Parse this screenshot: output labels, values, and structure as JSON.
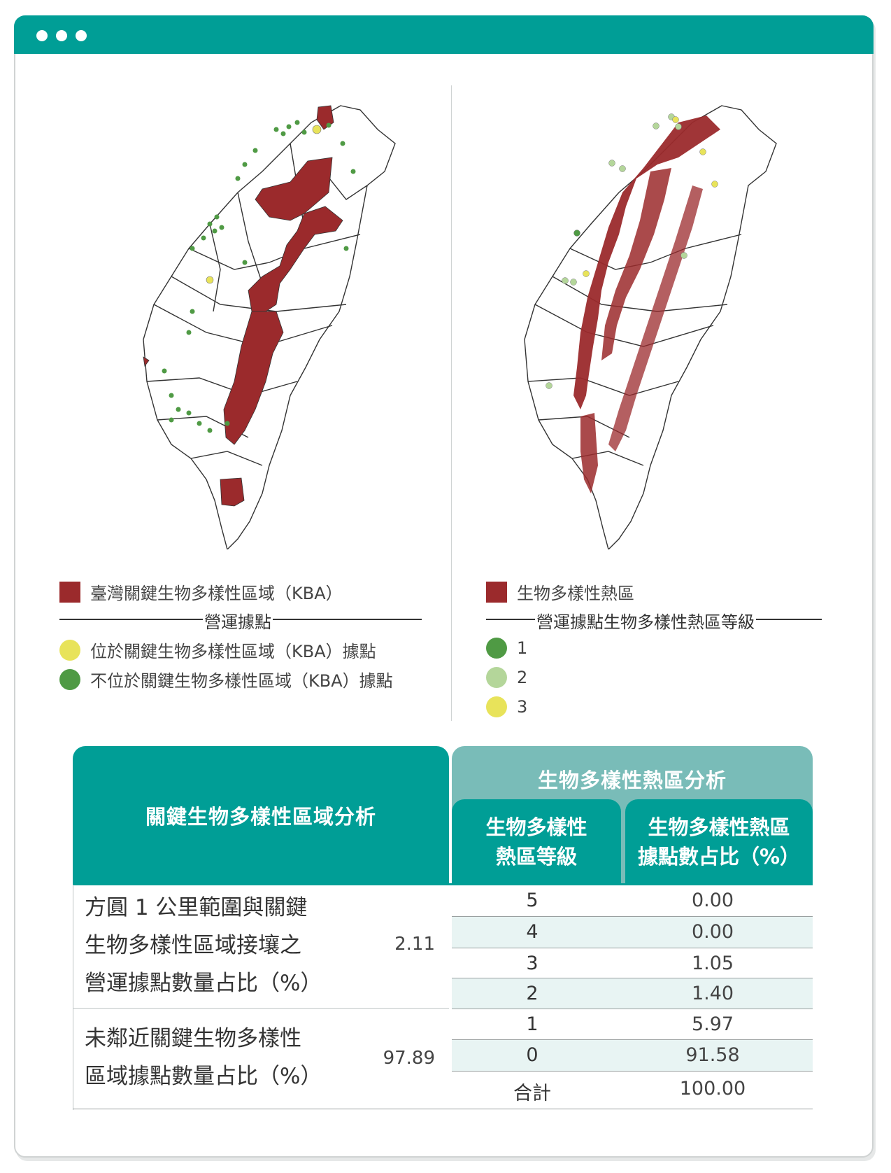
{
  "window": {
    "dots": 3
  },
  "left_map": {
    "legend_kba": "臺灣關鍵生物多樣性區域（KBA）",
    "legend_group_title": "營運據點",
    "legend_in_kba": "位於關鍵生物多樣性區域（KBA）據點",
    "legend_not_in_kba": "不位於關鍵生物多樣性區域（KBA）據點",
    "colors": {
      "kba": "#9b2a2c",
      "in_kba": "#e8e35a",
      "not_in_kba": "#4f9a44"
    }
  },
  "right_map": {
    "legend_hotspot": "生物多樣性熱區",
    "legend_group_title": "營運據點生物多樣性熱區等級",
    "levels": [
      {
        "label": "1",
        "color": "#4f9a44"
      },
      {
        "label": "2",
        "color": "#b4d69a"
      },
      {
        "label": "3",
        "color": "#e8e35a"
      }
    ]
  },
  "table": {
    "left_header": "關鍵生物多樣性區域分析",
    "right_header": "生物多樣性熱區分析",
    "sub_header_level": [
      "生物多樣性",
      "熱區等級"
    ],
    "sub_header_ratio": [
      "生物多樣性熱區",
      "據點數占比（%）"
    ],
    "left_rows": [
      {
        "lines": [
          "方圓 1 公里範圍與關鍵",
          "生物多樣性區域接壤之",
          "營運據點數量占比（%）"
        ],
        "value": "2.11"
      },
      {
        "lines": [
          "未鄰近關鍵生物多樣性",
          "區域據點數量占比（%）"
        ],
        "value": "97.89"
      }
    ],
    "right_rows": [
      {
        "level": "5",
        "ratio": "0.00"
      },
      {
        "level": "4",
        "ratio": "0.00"
      },
      {
        "level": "3",
        "ratio": "1.05"
      },
      {
        "level": "2",
        "ratio": "1.40"
      },
      {
        "level": "1",
        "ratio": "5.97"
      },
      {
        "level": "0",
        "ratio": "91.58"
      },
      {
        "level": "合計",
        "ratio": "100.00"
      }
    ]
  }
}
